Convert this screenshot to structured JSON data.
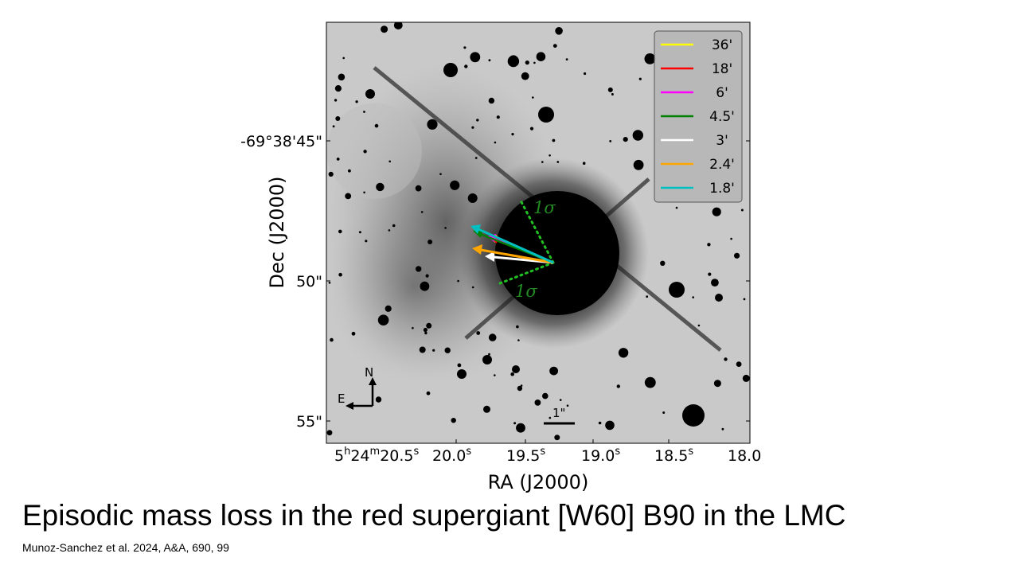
{
  "slide": {
    "title": "Episodic mass loss in the red supergiant [W60] B90 in the LMC",
    "citation": "Munoz-Sanchez et al. 2024, A&A, 690, 99"
  },
  "figure": {
    "xlabel": "RA (J2000)",
    "ylabel": "Dec (J2000)",
    "x_ticks": [
      {
        "base": "5",
        "sup1": "h",
        "mid": "24",
        "sup2": "m",
        "end": "20.5",
        "sup3": "s"
      },
      {
        "base": "20.0",
        "sup1": "s"
      },
      {
        "base": "19.5",
        "sup1": "s"
      },
      {
        "base": "19.0",
        "sup1": "s"
      },
      {
        "base": "18.5",
        "sup1": "s"
      },
      {
        "base": "18.0"
      }
    ],
    "y_ticks": [
      "-69°38'45\"",
      "50\"",
      "55\""
    ],
    "sigma_labels": [
      "1σ",
      "1σ"
    ],
    "compass": {
      "north": "N",
      "east": "E"
    },
    "scale_bar": "1\"",
    "colors": {
      "36'": "#ffff00",
      "18'": "#ff0000",
      "6'": "#ff00ff",
      "4.5'": "#008000",
      "3'": "#ffffff",
      "2.4'": "#ffa500",
      "1.8'": "#00bfc0",
      "sigma": "#228b22"
    }
  },
  "chart_data": {
    "type": "scatter",
    "title": "",
    "xlabel": "RA (J2000)",
    "ylabel": "Dec (J2000)",
    "legend_position": "top-right",
    "x_ticks": [
      "5h24m20.5s",
      "20.0s",
      "19.5s",
      "19.0s",
      "18.5s",
      "18.0"
    ],
    "y_ticks": [
      "-69°38'45\"",
      "50\"",
      "55\""
    ],
    "series": [
      {
        "name": "36'",
        "color": "#ffff00"
      },
      {
        "name": "18'",
        "color": "#ff0000"
      },
      {
        "name": "6'",
        "color": "#ff00ff"
      },
      {
        "name": "4.5'",
        "color": "#008000"
      },
      {
        "name": "3'",
        "color": "#ffffff"
      },
      {
        "name": "2.4'",
        "color": "#ffa500"
      },
      {
        "name": "1.8'",
        "color": "#00bfc0"
      }
    ]
  }
}
